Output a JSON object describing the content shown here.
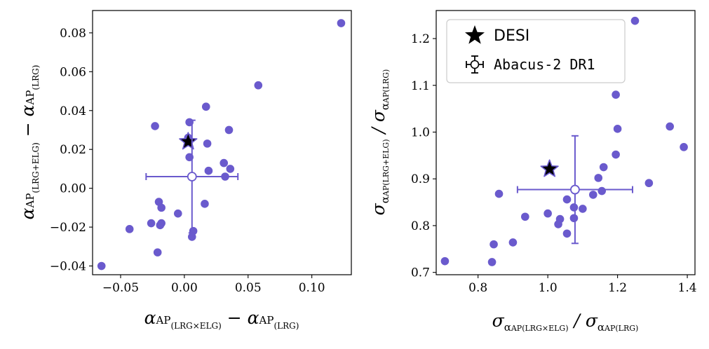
{
  "colors": {
    "points": "#6a5acd",
    "errorbar": "#6a5acd",
    "star": "#000000",
    "frame": "#000000"
  },
  "legend": {
    "star_label": "DESI",
    "abacus_label": "Abacus-2 DR1"
  },
  "chart_data": [
    {
      "type": "scatter",
      "xlabel": "α_AP(LRG×ELG) − α_AP(LRG)",
      "ylabel": "α_AP(LRG+ELG) − α_AP(LRG)",
      "xlim": [
        -0.072,
        0.131
      ],
      "ylim": [
        -0.0445,
        0.0915
      ],
      "xticks": [
        -0.05,
        0.0,
        0.05,
        0.1
      ],
      "xtick_labels": [
        "−0.05",
        "0.00",
        "0.05",
        "0.10"
      ],
      "yticks": [
        -0.04,
        -0.02,
        0.0,
        0.02,
        0.04,
        0.06,
        0.08
      ],
      "ytick_labels": [
        "−0.04",
        "−0.02",
        "0.00",
        "0.02",
        "0.04",
        "0.06",
        "0.08"
      ],
      "points": [
        {
          "x": 0.123,
          "y": 0.085
        },
        {
          "x": 0.058,
          "y": 0.053
        },
        {
          "x": 0.017,
          "y": 0.042
        },
        {
          "x": 0.004,
          "y": 0.034
        },
        {
          "x": -0.023,
          "y": 0.032
        },
        {
          "x": 0.035,
          "y": 0.03
        },
        {
          "x": 0.003,
          "y": 0.026
        },
        {
          "x": 0.018,
          "y": 0.023
        },
        {
          "x": 0.004,
          "y": 0.016
        },
        {
          "x": 0.031,
          "y": 0.013
        },
        {
          "x": 0.036,
          "y": 0.01
        },
        {
          "x": 0.019,
          "y": 0.009
        },
        {
          "x": 0.032,
          "y": 0.006
        },
        {
          "x": -0.02,
          "y": -0.007
        },
        {
          "x": 0.016,
          "y": -0.008
        },
        {
          "x": -0.018,
          "y": -0.01
        },
        {
          "x": -0.005,
          "y": -0.013
        },
        {
          "x": -0.026,
          "y": -0.018
        },
        {
          "x": -0.018,
          "y": -0.018
        },
        {
          "x": -0.019,
          "y": -0.019
        },
        {
          "x": -0.043,
          "y": -0.021
        },
        {
          "x": 0.007,
          "y": -0.022
        },
        {
          "x": 0.006,
          "y": -0.025
        },
        {
          "x": -0.021,
          "y": -0.033
        },
        {
          "x": -0.065,
          "y": -0.04
        }
      ],
      "star": {
        "x": 0.003,
        "y": 0.024
      },
      "mean": {
        "x": 0.006,
        "y": 0.006,
        "xerr": 0.036,
        "yerr": 0.029
      }
    },
    {
      "type": "scatter",
      "xlabel": "σ_αAP(LRG×ELG) / σ_αAP(LRG)",
      "ylabel": "σ_αAP(LRG+ELG) / σ_αAP(LRG)",
      "xlim": [
        0.68,
        1.422
      ],
      "ylim": [
        0.695,
        1.26
      ],
      "xticks": [
        0.8,
        1.0,
        1.2,
        1.4
      ],
      "xtick_labels": [
        "0.8",
        "1.0",
        "1.2",
        "1.4"
      ],
      "yticks": [
        0.7,
        0.8,
        0.9,
        1.0,
        1.1,
        1.2
      ],
      "ytick_labels": [
        "0.7",
        "0.8",
        "0.9",
        "1.0",
        "1.1",
        "1.2"
      ],
      "points": [
        {
          "x": 1.25,
          "y": 1.238
        },
        {
          "x": 1.195,
          "y": 1.08
        },
        {
          "x": 1.35,
          "y": 1.012
        },
        {
          "x": 1.2,
          "y": 1.007
        },
        {
          "x": 1.39,
          "y": 0.968
        },
        {
          "x": 1.195,
          "y": 0.952
        },
        {
          "x": 1.16,
          "y": 0.925
        },
        {
          "x": 1.145,
          "y": 0.902
        },
        {
          "x": 1.29,
          "y": 0.891
        },
        {
          "x": 1.155,
          "y": 0.874
        },
        {
          "x": 1.13,
          "y": 0.866
        },
        {
          "x": 0.86,
          "y": 0.868
        },
        {
          "x": 1.055,
          "y": 0.856
        },
        {
          "x": 1.075,
          "y": 0.839
        },
        {
          "x": 1.1,
          "y": 0.836
        },
        {
          "x": 1.0,
          "y": 0.826
        },
        {
          "x": 0.935,
          "y": 0.819
        },
        {
          "x": 1.075,
          "y": 0.816
        },
        {
          "x": 1.035,
          "y": 0.814
        },
        {
          "x": 1.03,
          "y": 0.803
        },
        {
          "x": 1.055,
          "y": 0.783
        },
        {
          "x": 0.9,
          "y": 0.764
        },
        {
          "x": 0.845,
          "y": 0.76
        },
        {
          "x": 0.705,
          "y": 0.724
        },
        {
          "x": 0.84,
          "y": 0.722
        }
      ],
      "star": {
        "x": 1.005,
        "y": 0.921
      },
      "mean": {
        "x": 1.078,
        "y": 0.877,
        "xerr": 0.165,
        "yerr": 0.115
      }
    }
  ]
}
